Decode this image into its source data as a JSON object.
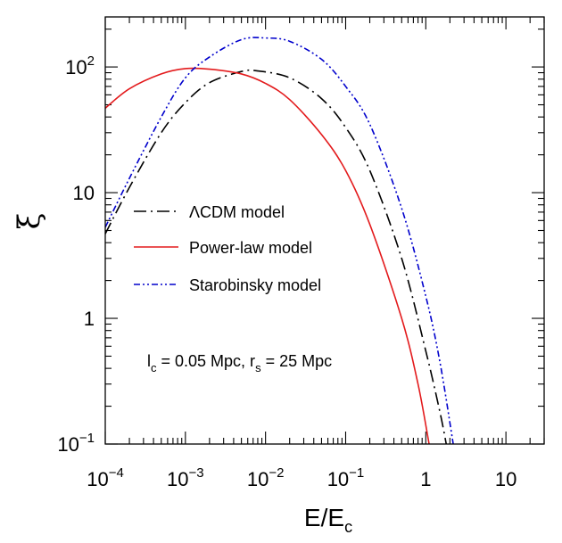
{
  "chart_data": {
    "type": "line",
    "title": "",
    "xlabel": "E/Ec",
    "ylabel": "ξ",
    "xscale": "log",
    "yscale": "log",
    "xlim": [
      0.0001,
      30
    ],
    "ylim": [
      0.1,
      250
    ],
    "legend_position": "center-left",
    "xticks": [
      {
        "value": 0.0001,
        "base": "10",
        "exp": "−4"
      },
      {
        "value": 0.001,
        "base": "10",
        "exp": "−3"
      },
      {
        "value": 0.01,
        "base": "10",
        "exp": "−2"
      },
      {
        "value": 0.1,
        "base": "10",
        "exp": "−1"
      },
      {
        "value": 1,
        "base": "1",
        "exp": ""
      },
      {
        "value": 10,
        "base": "10",
        "exp": ""
      }
    ],
    "yticks": [
      {
        "value": 0.1,
        "base": "10",
        "exp": "−1"
      },
      {
        "value": 1,
        "base": "1",
        "exp": ""
      },
      {
        "value": 10,
        "base": "10",
        "exp": ""
      },
      {
        "value": 100,
        "base": "10",
        "exp": "2"
      }
    ],
    "series": [
      {
        "name": "ΛCDM model",
        "color": "#000000",
        "dash": "longdashdot",
        "x": [
          0.0001,
          0.0002,
          0.0005,
          0.001,
          0.002,
          0.005,
          0.008,
          0.02,
          0.05,
          0.1,
          0.2,
          0.5,
          1.0,
          1.5,
          1.8
        ],
        "y": [
          4.7,
          11,
          30,
          52,
          75,
          92,
          93,
          82,
          56,
          33,
          15,
          3.0,
          0.55,
          0.18,
          0.1
        ]
      },
      {
        "name": "Power-law model",
        "color": "#e31a1c",
        "dash": "solid",
        "x": [
          0.0001,
          0.0002,
          0.0005,
          0.001,
          0.002,
          0.005,
          0.01,
          0.02,
          0.05,
          0.1,
          0.2,
          0.5,
          0.8,
          1.1
        ],
        "y": [
          47,
          67,
          88,
          97,
          96,
          88,
          74,
          55,
          29,
          15,
          5.6,
          1.0,
          0.3,
          0.1
        ]
      },
      {
        "name": "Starobinsky model",
        "color": "#0000cc",
        "dash": "dashdotdot",
        "x": [
          0.0001,
          0.0002,
          0.0005,
          0.001,
          0.002,
          0.005,
          0.01,
          0.02,
          0.05,
          0.1,
          0.2,
          0.5,
          1.0,
          1.5,
          2.2
        ],
        "y": [
          5.3,
          13,
          40,
          82,
          120,
          165,
          170,
          160,
          115,
          70,
          35,
          7.5,
          1.5,
          0.45,
          0.1
        ]
      }
    ],
    "annotation": {
      "l_symbol": "l",
      "l_sub": "c",
      "l_value": " = 0.05 Mpc, r",
      "r_sub": "s",
      "r_value": " = 25 Mpc"
    }
  }
}
